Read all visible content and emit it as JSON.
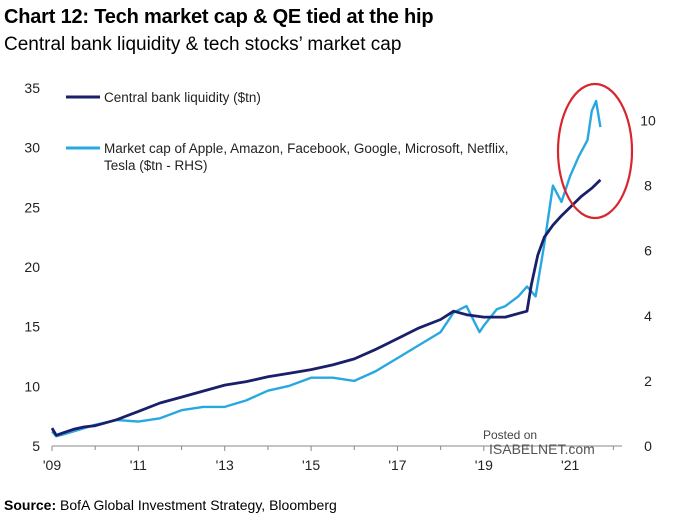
{
  "header": {
    "title": "Chart 12: Tech market cap & QE tied at the hip",
    "subtitle": "Central bank liquidity & tech stocks’ market cap"
  },
  "source": {
    "label": "Source:",
    "text": "BofA Global Investment Strategy, Bloomberg"
  },
  "watermark": {
    "line1": "Posted on",
    "line2": "ISABELNET.com"
  },
  "colors": {
    "liquidity": "#1a1f6b",
    "market_cap": "#29a8e0",
    "highlight_circle": "#d7262e",
    "axis": "#888888"
  },
  "chart_data": {
    "type": "line",
    "x_tick_labels": [
      "'09",
      "'11",
      "'13",
      "'15",
      "'17",
      "'19",
      "'21"
    ],
    "xlim": [
      2009,
      2022.2
    ],
    "y_left": {
      "ylim": [
        5,
        35
      ],
      "ticks": [
        5,
        10,
        15,
        20,
        25,
        30,
        35
      ]
    },
    "y_right": {
      "ylim": [
        0,
        11
      ],
      "ticks": [
        0,
        2,
        4,
        6,
        8,
        10
      ]
    },
    "legend_position": "top-left",
    "annotation": "circle around 2021 peak",
    "series": [
      {
        "name": "Central bank liquidity ($tn)",
        "axis": "left",
        "x": [
          2009.0,
          2009.1,
          2009.25,
          2009.5,
          2009.75,
          2010.0,
          2010.5,
          2011.0,
          2011.5,
          2012.0,
          2012.5,
          2013.0,
          2013.5,
          2014.0,
          2014.5,
          2015.0,
          2015.5,
          2016.0,
          2016.5,
          2017.0,
          2017.5,
          2018.0,
          2018.3,
          2018.6,
          2019.0,
          2019.5,
          2019.9,
          2020.0,
          2020.1,
          2020.25,
          2020.4,
          2020.6,
          2020.8,
          2021.0,
          2021.25,
          2021.5,
          2021.7
        ],
        "values": [
          6.5,
          5.9,
          6.1,
          6.4,
          6.6,
          6.7,
          7.2,
          7.9,
          8.6,
          9.1,
          9.6,
          10.1,
          10.4,
          10.8,
          11.1,
          11.4,
          11.8,
          12.3,
          13.1,
          14.0,
          14.9,
          15.6,
          16.3,
          16.0,
          15.8,
          15.8,
          16.2,
          16.3,
          18.5,
          21.0,
          22.5,
          23.5,
          24.3,
          25.0,
          25.9,
          26.6,
          27.3
        ]
      },
      {
        "name": "Market cap of Apple, Amazon, Facebook, Google, Microsoft, Netflix, Tesla ($tn - RHS)",
        "axis": "right",
        "x": [
          2009.0,
          2009.1,
          2009.25,
          2009.5,
          2009.75,
          2010.0,
          2010.5,
          2011.0,
          2011.5,
          2012.0,
          2012.5,
          2013.0,
          2013.5,
          2014.0,
          2014.5,
          2015.0,
          2015.5,
          2016.0,
          2016.5,
          2017.0,
          2017.5,
          2018.0,
          2018.3,
          2018.6,
          2018.9,
          2019.0,
          2019.3,
          2019.5,
          2019.8,
          2020.0,
          2020.2,
          2020.4,
          2020.6,
          2020.8,
          2021.0,
          2021.2,
          2021.4,
          2021.5,
          2021.6,
          2021.7
        ],
        "values": [
          0.45,
          0.3,
          0.35,
          0.45,
          0.55,
          0.65,
          0.8,
          0.75,
          0.85,
          1.1,
          1.2,
          1.2,
          1.4,
          1.7,
          1.85,
          2.1,
          2.1,
          2.0,
          2.3,
          2.7,
          3.1,
          3.5,
          4.1,
          4.3,
          3.5,
          3.7,
          4.2,
          4.3,
          4.6,
          4.9,
          4.6,
          6.2,
          8.0,
          7.5,
          8.3,
          8.9,
          9.4,
          10.3,
          10.6,
          9.8
        ]
      }
    ]
  }
}
